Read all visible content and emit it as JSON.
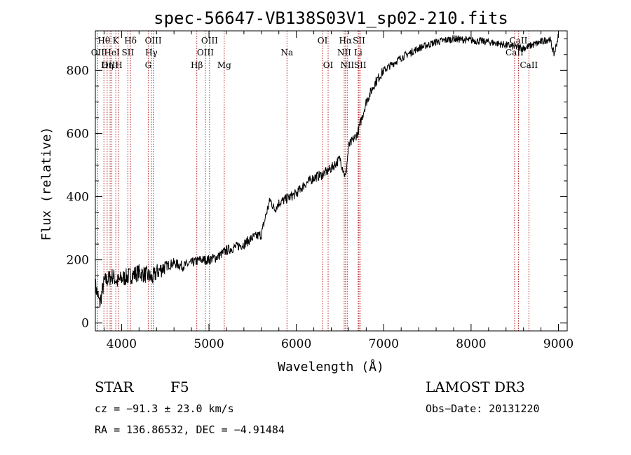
{
  "chart_data": {
    "type": "line",
    "title": "spec-56647-VB138S03V1_sp02-210.fits",
    "xlabel": "Wavelength (Å)",
    "ylabel": "Flux (relative)",
    "xlim": [
      3700,
      9100
    ],
    "ylim": [
      -25,
      925
    ],
    "x_ticks": [
      4000,
      5000,
      6000,
      7000,
      8000,
      9000
    ],
    "y_ticks": [
      0,
      200,
      400,
      600,
      800
    ],
    "grid": false,
    "series": [
      {
        "name": "spectrum",
        "x": [
          3700,
          3750,
          3800,
          3850,
          3900,
          3950,
          4000,
          4100,
          4200,
          4300,
          4350,
          4400,
          4500,
          4600,
          4700,
          4800,
          4900,
          5000,
          5100,
          5200,
          5300,
          5400,
          5500,
          5600,
          5650,
          5700,
          5750,
          5800,
          5900,
          6000,
          6100,
          6200,
          6300,
          6400,
          6500,
          6563,
          6600,
          6700,
          6800,
          6900,
          7000,
          7200,
          7400,
          7600,
          7800,
          8000,
          8200,
          8400,
          8600,
          8700,
          8800,
          8900,
          8950,
          9000
        ],
        "y": [
          120,
          60,
          130,
          140,
          150,
          130,
          140,
          150,
          160,
          150,
          140,
          160,
          180,
          190,
          180,
          190,
          200,
          200,
          210,
          230,
          240,
          250,
          270,
          280,
          340,
          390,
          360,
          380,
          395,
          410,
          440,
          460,
          470,
          490,
          520,
          460,
          560,
          600,
          700,
          760,
          800,
          840,
          870,
          890,
          900,
          895,
          890,
          880,
          870,
          880,
          890,
          900,
          850,
          910
        ]
      }
    ],
    "line_markers": [
      {
        "name": "Hθ",
        "x": 3798,
        "row": 1
      },
      {
        "name": "OII",
        "x": 3727,
        "row": 2
      },
      {
        "name": "OIII",
        "x": 3869,
        "row": 3
      },
      {
        "name": "K",
        "x": 3934,
        "row": 1
      },
      {
        "name": "HeI",
        "x": 3889,
        "row": 2
      },
      {
        "name": "Hη",
        "x": 3835,
        "row": 3
      },
      {
        "name": "H",
        "x": 3969,
        "row": 3
      },
      {
        "name": "SII",
        "x": 4072,
        "row": 2
      },
      {
        "name": "Hδ",
        "x": 4102,
        "row": 1
      },
      {
        "name": "OIII",
        "x": 4363,
        "row": 1
      },
      {
        "name": "Hγ",
        "x": 4341,
        "row": 2
      },
      {
        "name": "G",
        "x": 4305,
        "row": 3
      },
      {
        "name": "Hβ",
        "x": 4861,
        "row": 3
      },
      {
        "name": "OIII",
        "x": 5007,
        "row": 1
      },
      {
        "name": "OIII",
        "x": 4959,
        "row": 2
      },
      {
        "name": "Mg",
        "x": 5175,
        "row": 3
      },
      {
        "name": "Na",
        "x": 5893,
        "row": 2
      },
      {
        "name": "OI",
        "x": 6300,
        "row": 1
      },
      {
        "name": "OI",
        "x": 6364,
        "row": 3
      },
      {
        "name": "Hα",
        "x": 6563,
        "row": 1
      },
      {
        "name": "NII",
        "x": 6548,
        "row": 2
      },
      {
        "name": "NII",
        "x": 6583,
        "row": 3
      },
      {
        "name": "SII",
        "x": 6717,
        "row": 1
      },
      {
        "name": "Li",
        "x": 6708,
        "row": 2
      },
      {
        "name": "SII",
        "x": 6731,
        "row": 3
      },
      {
        "name": "CaII",
        "x": 8542,
        "row": 1
      },
      {
        "name": "CaII",
        "x": 8498,
        "row": 2
      },
      {
        "name": "CaII",
        "x": 8662,
        "row": 3
      }
    ]
  },
  "info": {
    "object_class": "STAR",
    "subclass": "F5",
    "survey": "LAMOST DR3",
    "cz": "cz = −91.3 ± 23.0 km/s",
    "obs_date": "Obs−Date: 20131220",
    "coords": "RA = 136.86532, DEC =  −4.91484"
  },
  "colors": {
    "spectrum": "#000000",
    "markers": "#b22222",
    "axes": "#000000"
  }
}
